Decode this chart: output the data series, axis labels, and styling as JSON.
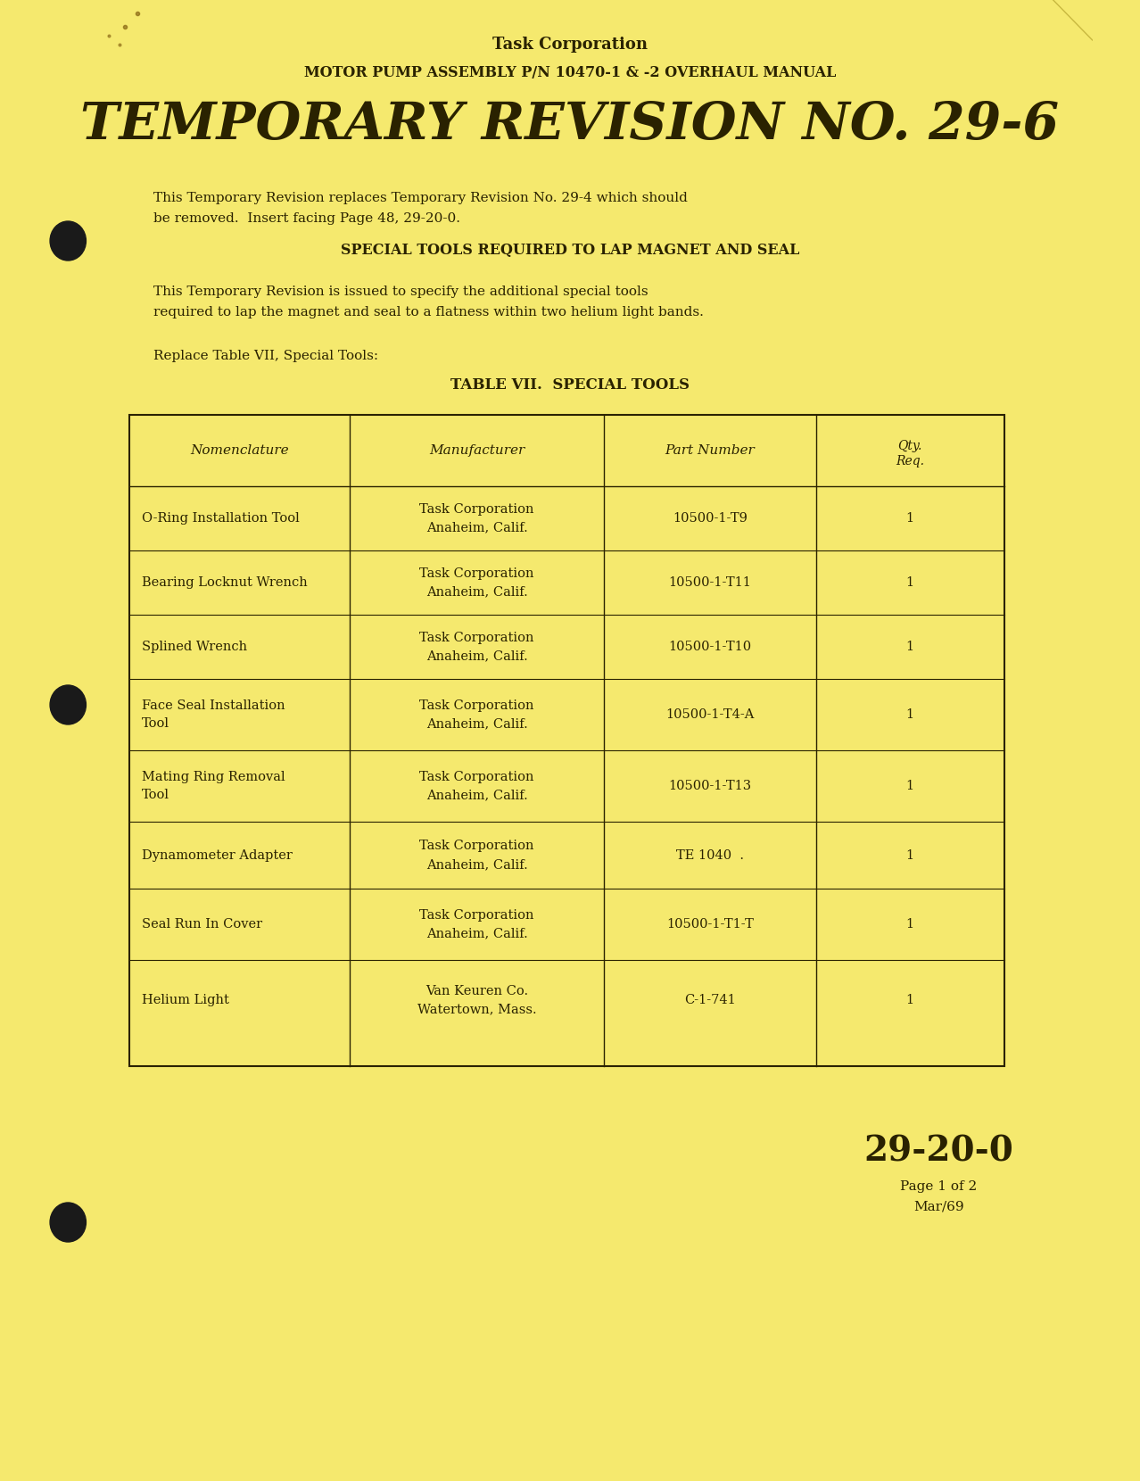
{
  "bg_color": "#f5e96e",
  "page_bg": "#f0e060",
  "text_color": "#2a2200",
  "title1": "Task Corporation",
  "title2": "MOTOR PUMP ASSEMBLY P/N 10470-1 & -2 OVERHAUL MANUAL",
  "main_title": "TEMPORARY REVISION NO. 29-6",
  "para1": "This Temporary Revision replaces Temporary Revision No. 29-4 which should\nbe removed.  Insert facing Page 48, 29-20-0.",
  "section_title": "SPECIAL TOOLS REQUIRED TO LAP MAGNET AND SEAL",
  "para2": "This Temporary Revision is issued to specify the additional special tools\nrequired to lap the magnet and seal to a flatness within two helium light bands.",
  "para3": "Replace Table VII, Special Tools:",
  "table_title": "TABLE VII.  SPECIAL TOOLS",
  "col_headers": [
    "Nomenclature",
    "Manufacturer",
    "Part Number",
    "Qty.\nReq."
  ],
  "table_rows": [
    [
      "O-Ring Installation Tool",
      "Task Corporation\nAnaheim, Calif.",
      "10500-1-T9",
      "1"
    ],
    [
      "Bearing Locknut Wrench",
      "Task Corporation\nAnaheim, Calif.",
      "10500-1-T11",
      "1"
    ],
    [
      "Splined Wrench",
      "Task Corporation\nAnaheim, Calif.",
      "10500-1-T10",
      "1"
    ],
    [
      "Face Seal Installation\nTool",
      "Task Corporation\nAnaheim, Calif.",
      "10500-1-T4-A",
      "1"
    ],
    [
      "Mating Ring Removal\nTool",
      "Task Corporation\nAnaheim, Calif.",
      "10500-1-T13",
      "1"
    ],
    [
      "Dynamometer Adapter",
      "Task Corporation\nAnaheim, Calif.",
      "TE 1040  .",
      "1"
    ],
    [
      "Seal Run In Cover",
      "Task Corporation\nAnaheim, Calif.",
      "10500-1-T1-T",
      "1\n’"
    ],
    [
      "Helium Light",
      "Van Keuren Co.\nWatertown, Mass.",
      "C-1-741",
      "1"
    ]
  ],
  "footer_num": "29-20-0",
  "footer_page": "Page 1 of 2",
  "footer_date": "Mar/69"
}
